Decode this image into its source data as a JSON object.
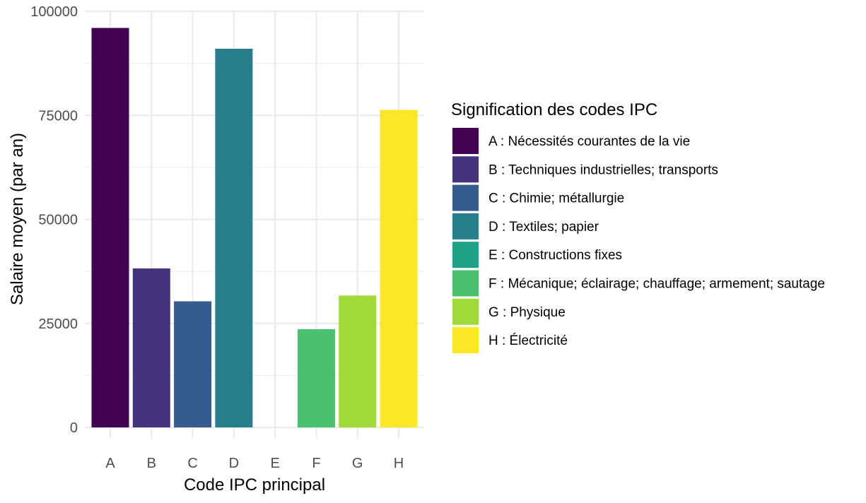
{
  "chart_data": {
    "type": "bar",
    "xlabel": "Code IPC principal",
    "ylabel": "Salaire moyen (par an)",
    "categories": [
      "A",
      "B",
      "C",
      "D",
      "E",
      "F",
      "G",
      "H"
    ],
    "values": [
      96000,
      38200,
      30300,
      91000,
      0,
      23600,
      31700,
      76300
    ],
    "ylim": [
      0,
      100000
    ],
    "yticks": [
      "0",
      "25000",
      "50000",
      "75000",
      "100000"
    ],
    "grid": true,
    "legend": {
      "title": "Signification des codes IPC",
      "position": "right",
      "entries": [
        "A : Nécessités courantes de la vie",
        "B : Techniques industrielles; transports",
        "C : Chimie; métallurgie",
        "D : Textiles; papier",
        "E : Constructions fixes",
        "F : Mécanique; éclairage; chauffage; armement; sautage",
        "G : Physique",
        "H : Électricité"
      ]
    },
    "colors": [
      "#440154",
      "#46337e",
      "#365c8d",
      "#277f8e",
      "#1fa187",
      "#4ac16d",
      "#9fda3a",
      "#fde725"
    ]
  }
}
